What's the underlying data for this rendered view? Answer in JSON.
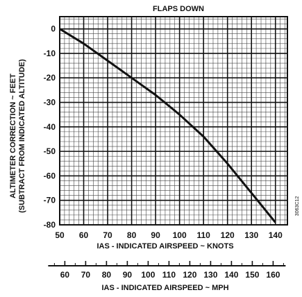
{
  "chart_data": {
    "type": "line",
    "title": "FLAPS DOWN",
    "ylabel_line1": "ALTIMETER CORRECTION ~ FEET",
    "ylabel_line2": "(SUBTRACT FROM INDICATED ALTITUDE)",
    "xlabel": "IAS - INDICATED AIRSPEED ~ KNOTS",
    "x2label": "IAS - INDICATED AIRSPEED ~ MPH",
    "side_code": "3063C12",
    "xlim": [
      50,
      145
    ],
    "ylim": [
      -80,
      5
    ],
    "x_ticks": [
      50,
      60,
      70,
      80,
      90,
      100,
      110,
      120,
      130,
      140
    ],
    "x_tick_labels": [
      "50",
      "60",
      "70",
      "80",
      "90",
      "100",
      "110",
      "120",
      "130",
      "140"
    ],
    "y_ticks": [
      0,
      -10,
      -20,
      -30,
      -40,
      -50,
      -60,
      -70,
      -80
    ],
    "y_tick_labels": [
      "0",
      "-10",
      "-20",
      "-30",
      "-40",
      "-50",
      "-60",
      "-70",
      "-80"
    ],
    "mph_ticks": [
      60,
      70,
      80,
      90,
      100,
      110,
      120,
      130,
      140,
      150,
      160
    ],
    "mph_tick_labels": [
      "60",
      "70",
      "80",
      "90",
      "100",
      "110",
      "120",
      "130",
      "140",
      "150",
      "160"
    ],
    "grid": true,
    "series": [
      {
        "x": [
          50,
          60,
          70,
          80,
          90,
          100,
          110,
          120,
          130,
          140
        ],
        "y": [
          0,
          -6,
          -13,
          -20,
          -27,
          -35,
          -44,
          -55,
          -67,
          -79
        ]
      }
    ]
  },
  "colors": {
    "ink": "#111111",
    "grid": "#333333",
    "background": "#ffffff"
  }
}
